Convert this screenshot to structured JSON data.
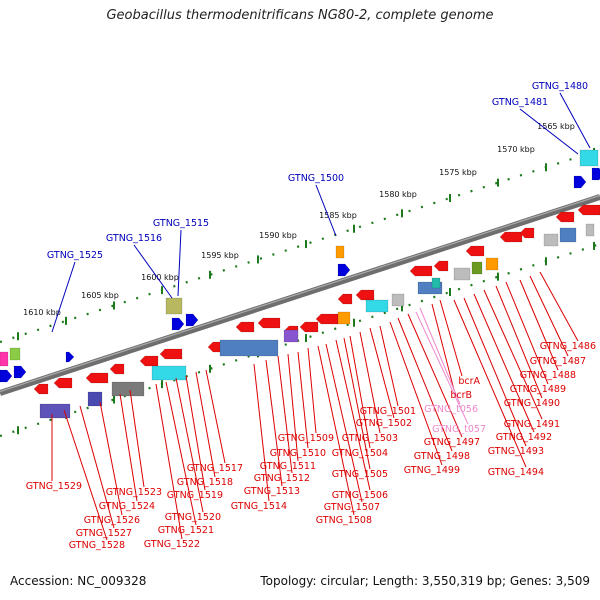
{
  "title": "Geobacillus thermodenitrificans NG80-2, complete genome",
  "footer": {
    "accession": "Accession: NC_009328",
    "summary": "Topology: circular; Length: 3,550,319 bp; Genes: 3,509"
  },
  "colors": {
    "backbone": "#6e6e6e",
    "tick_green": "#1c7a1c",
    "label_red": "#dd0000",
    "label_blue": "#0000bb",
    "label_pink": "#ee88cc",
    "forward_feature": "#0000dd",
    "reverse_feature": "#ee1111"
  },
  "scale_ticks": [
    "1565 kbp",
    "1570 kbp",
    "1575 kbp",
    "1580 kbp",
    "1585 kbp",
    "1590 kbp",
    "1595 kbp",
    "1600 kbp",
    "1605 kbp",
    "1610 kbp"
  ],
  "labels_top": [
    "GTNG_1480",
    "GTNG_1481",
    "GTNG_1500",
    "GTNG_1515",
    "GTNG_1516",
    "GTNG_1525"
  ],
  "labels_bottom": [
    "GTNG_1486",
    "GTNG_1487",
    "GTNG_1488",
    "GTNG_1489",
    "GTNG_1490",
    "GTNG_1491",
    "GTNG_1492",
    "GTNG_1493",
    "GTNG_1494",
    "bcrA",
    "bcrB",
    "GTNG_t056",
    "GTNG_t057",
    "GTNG_1497",
    "GTNG_1498",
    "GTNG_1499",
    "GTNG_1501",
    "GTNG_1502",
    "GTNG_1503",
    "GTNG_1504",
    "GTNG_1505",
    "GTNG_1506",
    "GTNG_1507",
    "GTNG_1508",
    "GTNG_1509",
    "GTNG_1510",
    "GTNG_1511",
    "GTNG_1512",
    "GTNG_1513",
    "GTNG_1514",
    "GTNG_1517",
    "GTNG_1518",
    "GTNG_1519",
    "GTNG_1520",
    "GTNG_1521",
    "GTNG_1522",
    "GTNG_1523",
    "GTNG_1524",
    "GTNG_1526",
    "GTNG_1527",
    "GTNG_1528",
    "GTNG_1529"
  ]
}
